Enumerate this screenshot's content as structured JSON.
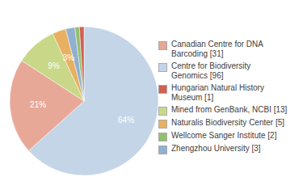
{
  "chart_data": {
    "type": "pie",
    "categories": [
      "Centre for Biodiversity\nGenomics [96]",
      "Canadian Centre for DNA\nBarcoding [31]",
      "Mined from GenBank, NCBI [13]",
      "Naturalis Biodiversity Center [5]",
      "Zhengzhou University [3]",
      "Wellcome Sanger Institute [2]",
      "Hungarian Natural History\nMuseum [1]"
    ],
    "values": [
      64,
      21,
      9,
      3,
      2,
      1,
      1
    ],
    "value_labels": [
      "64%",
      "21%",
      "9%",
      "3%",
      null,
      null,
      null
    ],
    "colors": [
      "#c5d5e8",
      "#e8a898",
      "#c8d888",
      "#e8b060",
      "#90b0d0",
      "#90c070",
      "#d06050"
    ],
    "data_labels": true,
    "legend": "right"
  }
}
